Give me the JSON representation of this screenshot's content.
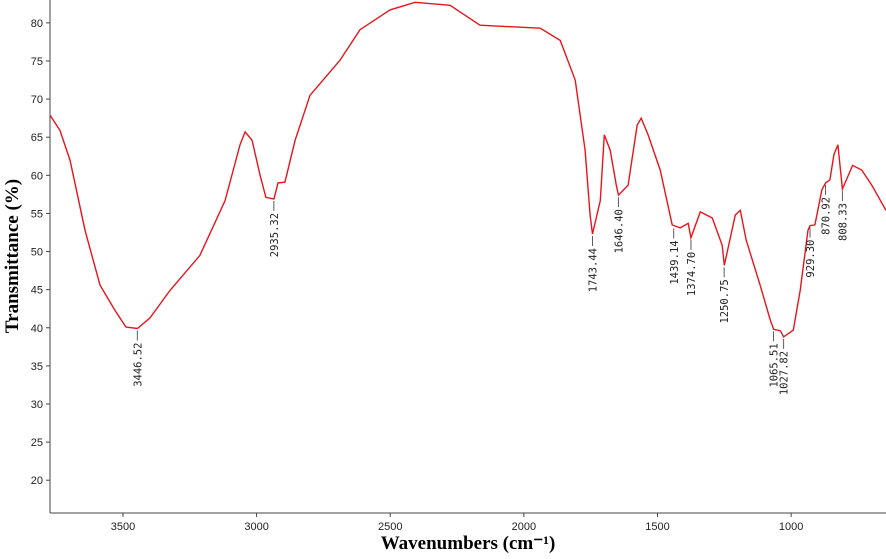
{
  "chart_data": {
    "type": "line",
    "x_label": "Wavenumbers (cm⁻¹)",
    "y_label": "Transmittance (%)",
    "xlim": [
      3773,
      645
    ],
    "ylim": [
      15.7,
      83
    ],
    "xticks": [
      3500,
      3000,
      2500,
      2000,
      1500,
      1000
    ],
    "yticks": [
      20,
      25,
      30,
      35,
      40,
      45,
      50,
      55,
      60,
      65,
      70,
      75,
      80
    ],
    "series": [
      {
        "color": "#e8141c",
        "x": [
          3773,
          3736,
          3698,
          3642,
          3586,
          3530,
          3489,
          3446,
          3399,
          3324,
          3212,
          3118,
          3062,
          3043,
          3017,
          2987,
          2965,
          2935,
          2920,
          2894,
          2856,
          2800,
          2688,
          2613,
          2501,
          2407,
          2276,
          2164,
          1939,
          1864,
          1808,
          1771,
          1752,
          1743,
          1714,
          1699,
          1677,
          1654,
          1646,
          1610,
          1576,
          1561,
          1535,
          1490,
          1445,
          1415,
          1385,
          1375,
          1340,
          1295,
          1258,
          1250,
          1209,
          1190,
          1168,
          1116,
          1078,
          1065,
          1040,
          1028,
          992,
          966,
          937,
          929,
          911,
          885,
          871,
          855,
          840,
          825,
          808,
          792,
          770,
          736,
          698,
          645
        ],
        "values": [
          67.9,
          65.9,
          62,
          52.8,
          45.6,
          42.3,
          40.1,
          39.9,
          41.3,
          44.9,
          49.5,
          56.7,
          64,
          65.7,
          64.6,
          60,
          57.1,
          56.9,
          59,
          59.1,
          64.6,
          70.5,
          75.1,
          79.1,
          81.7,
          82.7,
          82.3,
          79.7,
          79.3,
          77.7,
          72.5,
          63.3,
          54.8,
          52.3,
          56.7,
          65.3,
          63.3,
          58.7,
          57.4,
          58.7,
          66.6,
          67.5,
          65.3,
          60.7,
          53.5,
          53.1,
          53.7,
          51.8,
          55.2,
          54.4,
          50.8,
          48.2,
          54.8,
          55.4,
          51.5,
          45.6,
          41,
          39.8,
          39.6,
          38.8,
          39.7,
          44.9,
          52.8,
          53.4,
          53.5,
          58.1,
          59,
          59.4,
          62.7,
          64,
          58.2,
          59.5,
          61.3,
          60.7,
          58.7,
          55.4
        ]
      }
    ],
    "annotations": [
      {
        "label": "3446.52",
        "x": 3446.52,
        "y": 39.9
      },
      {
        "label": "2935.32",
        "x": 2935.32,
        "y": 56.9
      },
      {
        "label": "1743.44",
        "x": 1743.44,
        "y": 52.3
      },
      {
        "label": "1646.40",
        "x": 1646.4,
        "y": 57.4
      },
      {
        "label": "1439.14",
        "x": 1439.14,
        "y": 53.3
      },
      {
        "label": "1374.70",
        "x": 1374.7,
        "y": 51.8
      },
      {
        "label": "1250.75",
        "x": 1250.75,
        "y": 48.2
      },
      {
        "label": "1065.51",
        "x": 1065.51,
        "y": 39.8
      },
      {
        "label": "1027.82",
        "x": 1027.82,
        "y": 38.8
      },
      {
        "label": "929.30",
        "x": 929.3,
        "y": 53.4
      },
      {
        "label": "870.92",
        "x": 870.92,
        "y": 59
      },
      {
        "label": "808.33",
        "x": 808.33,
        "y": 58.2
      }
    ]
  }
}
